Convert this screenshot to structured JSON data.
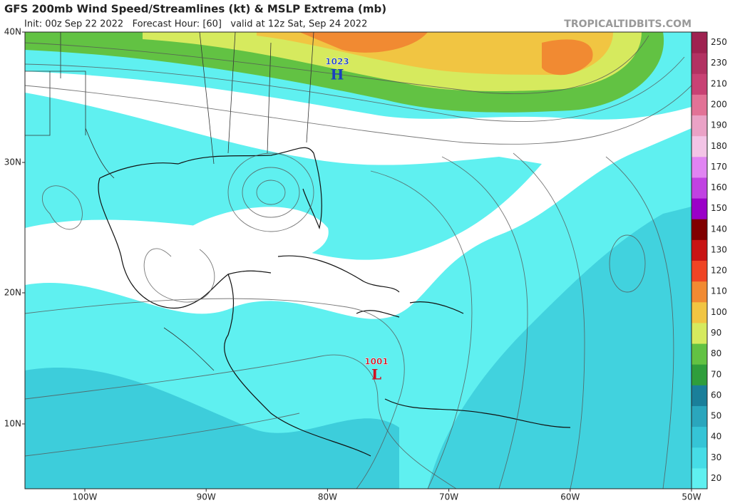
{
  "header": {
    "title": "GFS 200mb Wind Speed/Streamlines (kt) & MSLP Extrema (mb)",
    "subtitle": "Init: 00z Sep 22 2022   Forecast Hour: [60]   valid at 12z Sat, Sep 24 2022",
    "watermark": "TROPICALTIDBITS.COM"
  },
  "map": {
    "lat_labels": [
      "40N",
      "30N",
      "20N",
      "10N"
    ],
    "lon_labels": [
      "100W",
      "90W",
      "80W",
      "70W",
      "60W",
      "50W"
    ],
    "pressure_centers": [
      {
        "type": "H",
        "value": 1023
      },
      {
        "type": "L",
        "value": 1001
      }
    ]
  },
  "colorbar": {
    "levels": [
      20,
      30,
      40,
      50,
      60,
      70,
      80,
      90,
      100,
      110,
      120,
      130,
      140,
      150,
      160,
      170,
      180,
      190,
      200,
      210,
      230,
      250
    ],
    "colors": [
      "#5ff0f0",
      "#46dce6",
      "#35c4d6",
      "#2aa6bd",
      "#1a7f9a",
      "#2f9e3c",
      "#62c243",
      "#d6ea5e",
      "#f1c542",
      "#f18a32",
      "#ef4424",
      "#c81414",
      "#800000",
      "#9a00c8",
      "#c042e2",
      "#e084f2",
      "#f3c4e6",
      "#eaa2c6",
      "#e27296",
      "#c84274",
      "#b23262",
      "#9e2250"
    ]
  }
}
